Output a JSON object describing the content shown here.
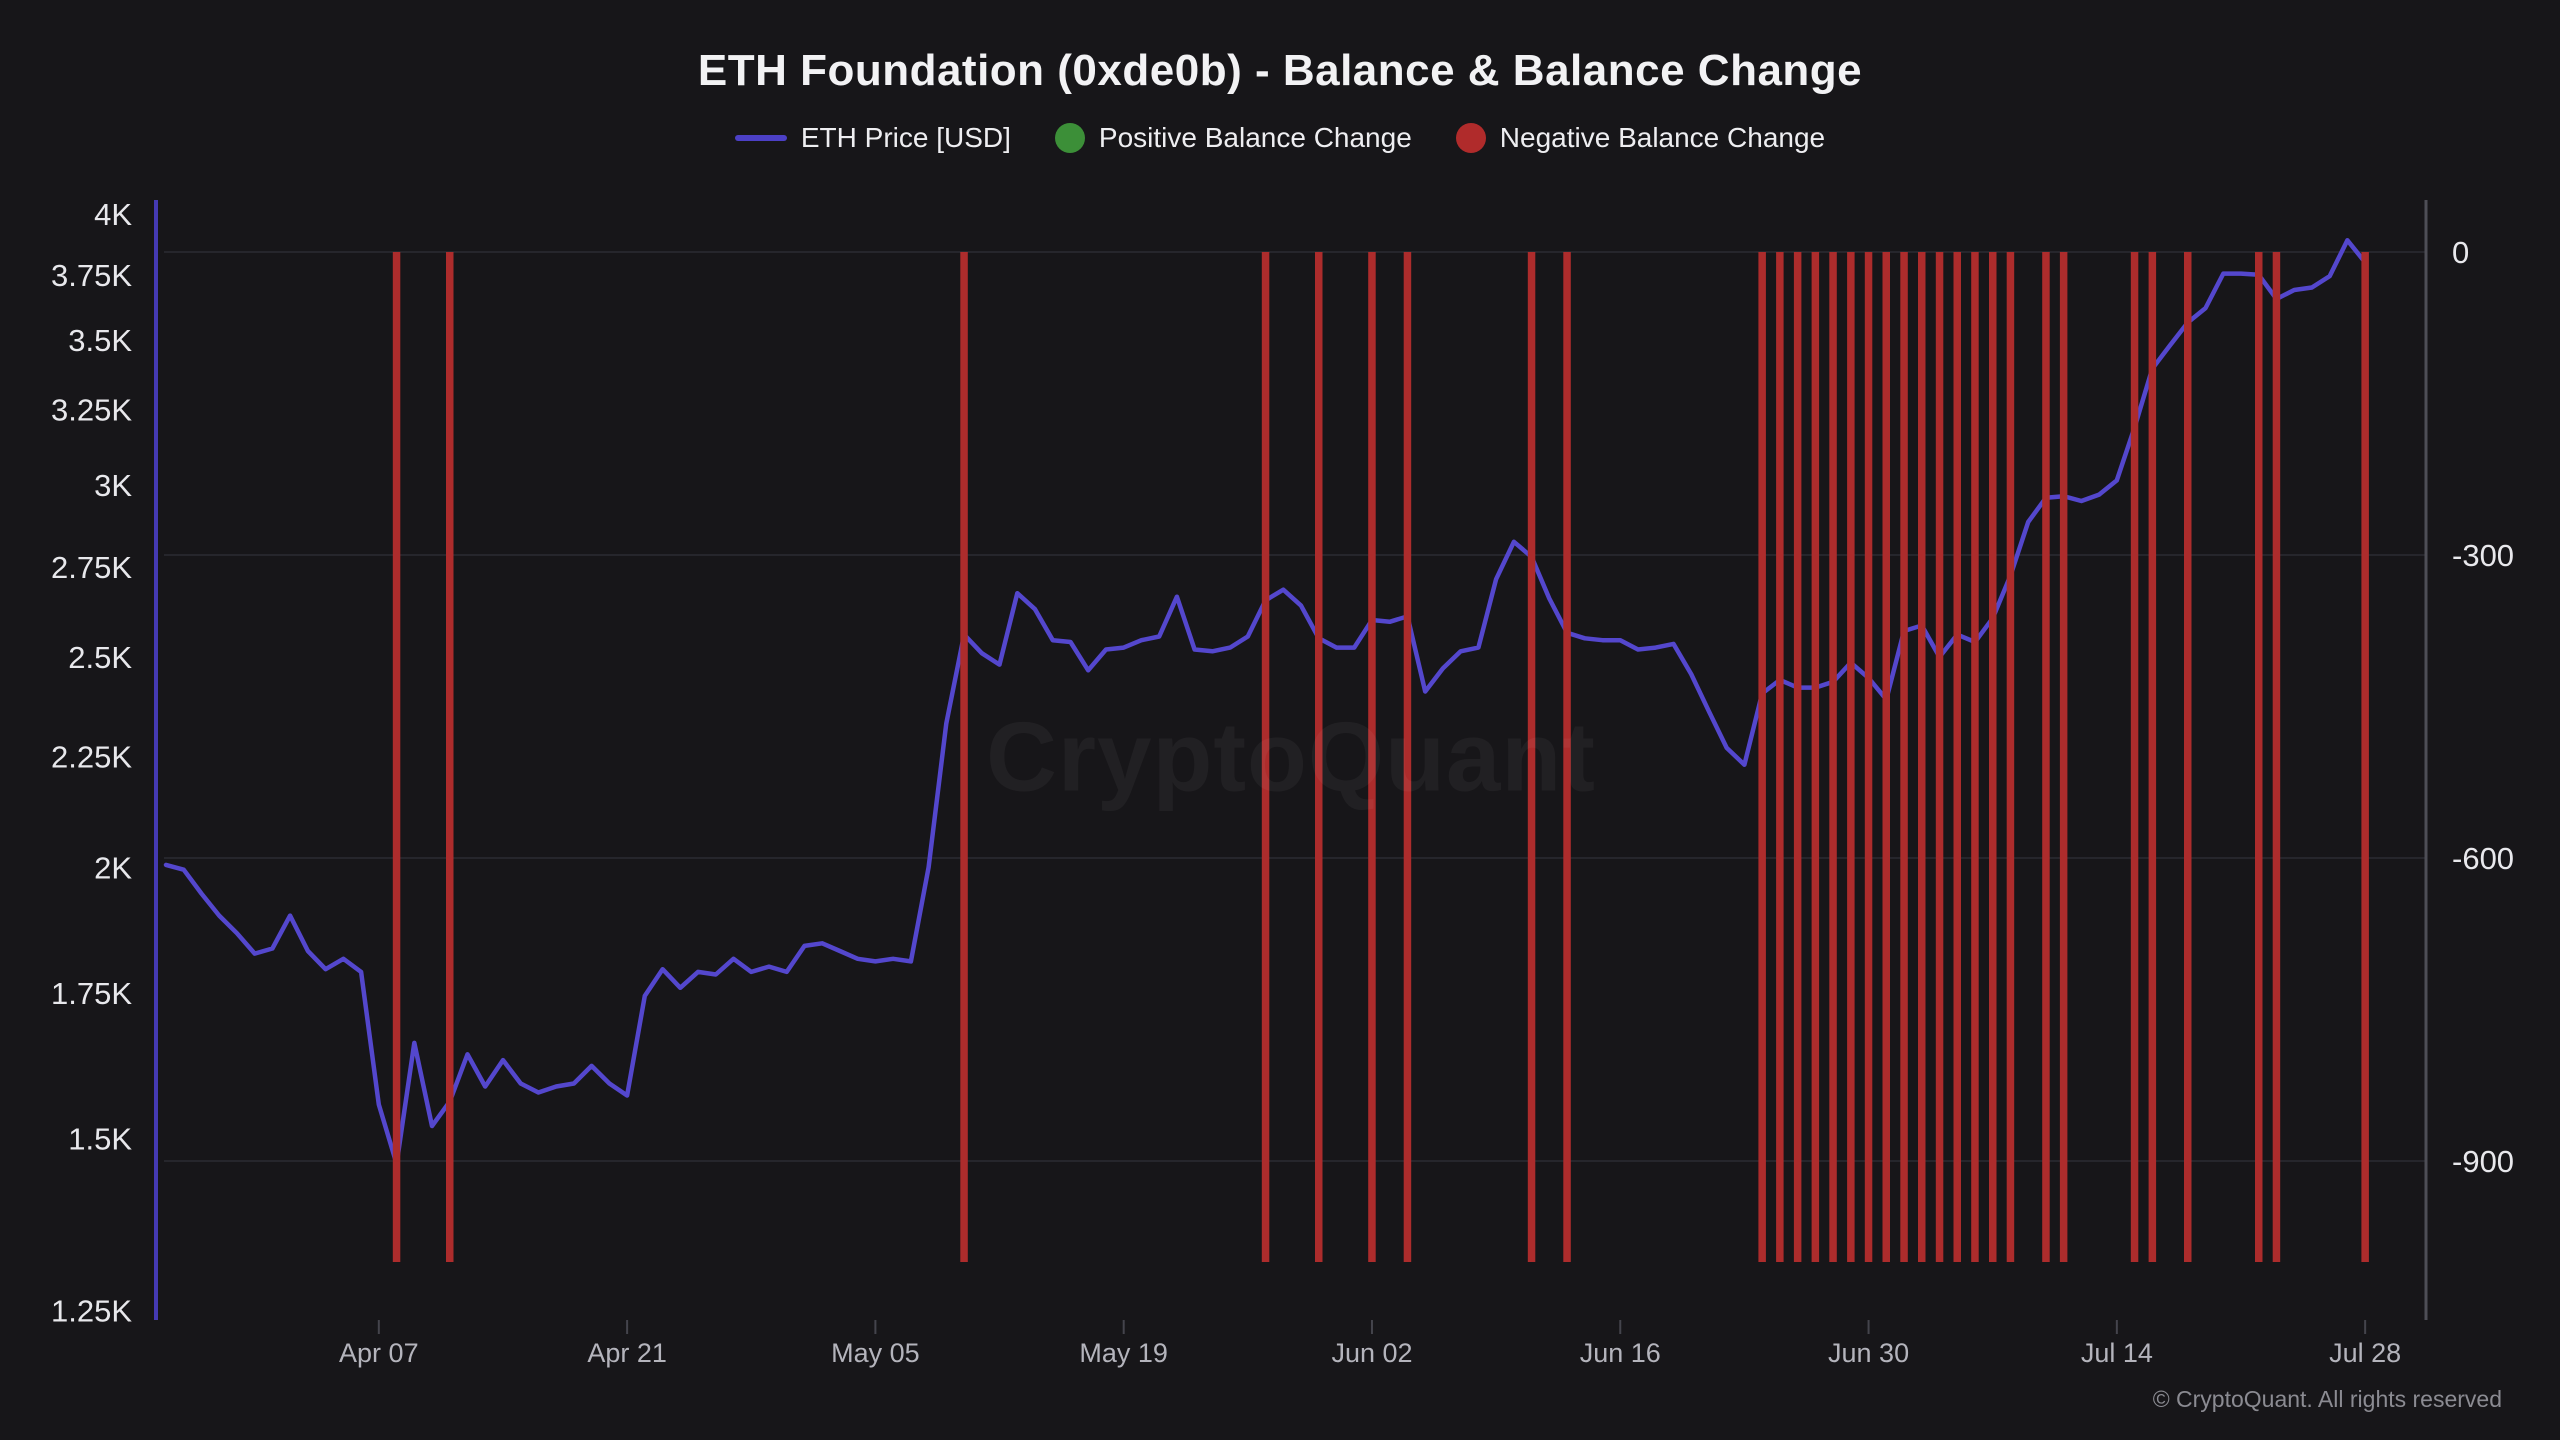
{
  "header": {
    "title": "ETH Foundation (0xde0b) - Balance & Balance Change"
  },
  "legend": {
    "items": [
      {
        "label": "ETH Price [USD]",
        "marker": "line",
        "color": "#4c40c6"
      },
      {
        "label": "Positive Balance Change",
        "marker": "dot",
        "color": "#3c8f38"
      },
      {
        "label": "Negative Balance Change",
        "marker": "dot",
        "color": "#b02b2b"
      }
    ]
  },
  "watermark": {
    "text": "CryptoQuant"
  },
  "footer": {
    "copyright": "© CryptoQuant. All rights reserved"
  },
  "chart_data": {
    "type": "line+bar",
    "title": "ETH Foundation (0xde0b) - Balance & Balance Change",
    "grid": "horizontal",
    "legend_position": "top-center",
    "x_axis": {
      "tick_labels": [
        "Apr 07",
        "Apr 21",
        "May 05",
        "May 19",
        "Jun 02",
        "Jun 16",
        "Jun 30",
        "Jul 14",
        "Jul 28"
      ],
      "dates": [
        "Mar 26",
        "Mar 27",
        "Mar 28",
        "Mar 29",
        "Mar 30",
        "Mar 31",
        "Apr 01",
        "Apr 02",
        "Apr 03",
        "Apr 04",
        "Apr 05",
        "Apr 06",
        "Apr 07",
        "Apr 08",
        "Apr 09",
        "Apr 10",
        "Apr 11",
        "Apr 12",
        "Apr 13",
        "Apr 14",
        "Apr 15",
        "Apr 16",
        "Apr 17",
        "Apr 18",
        "Apr 19",
        "Apr 20",
        "Apr 21",
        "Apr 22",
        "Apr 23",
        "Apr 24",
        "Apr 25",
        "Apr 26",
        "Apr 27",
        "Apr 28",
        "Apr 29",
        "Apr 30",
        "May 01",
        "May 02",
        "May 03",
        "May 04",
        "May 05",
        "May 06",
        "May 07",
        "May 08",
        "May 09",
        "May 10",
        "May 11",
        "May 12",
        "May 13",
        "May 14",
        "May 15",
        "May 16",
        "May 17",
        "May 18",
        "May 19",
        "May 20",
        "May 21",
        "May 22",
        "May 23",
        "May 24",
        "May 25",
        "May 26",
        "May 27",
        "May 28",
        "May 29",
        "May 30",
        "May 31",
        "Jun 01",
        "Jun 02",
        "Jun 03",
        "Jun 04",
        "Jun 05",
        "Jun 06",
        "Jun 07",
        "Jun 08",
        "Jun 09",
        "Jun 10",
        "Jun 11",
        "Jun 12",
        "Jun 13",
        "Jun 14",
        "Jun 15",
        "Jun 16",
        "Jun 17",
        "Jun 18",
        "Jun 19",
        "Jun 20",
        "Jun 21",
        "Jun 22",
        "Jun 23",
        "Jun 24",
        "Jun 25",
        "Jun 26",
        "Jun 27",
        "Jun 28",
        "Jun 29",
        "Jun 30",
        "Jul 01",
        "Jul 02",
        "Jul 03",
        "Jul 04",
        "Jul 05",
        "Jul 06",
        "Jul 07",
        "Jul 08",
        "Jul 09",
        "Jul 10",
        "Jul 11",
        "Jul 12",
        "Jul 13",
        "Jul 14",
        "Jul 15",
        "Jul 16",
        "Jul 17",
        "Jul 18",
        "Jul 19",
        "Jul 20",
        "Jul 21",
        "Jul 22",
        "Jul 23",
        "Jul 24",
        "Jul 25",
        "Jul 26",
        "Jul 27",
        "Jul 28"
      ]
    },
    "left_axis": {
      "scale": "log",
      "unit": "USD",
      "ticks": [
        {
          "label": "4K",
          "value": 4000
        },
        {
          "label": "3.75K",
          "value": 3750
        },
        {
          "label": "3.5K",
          "value": 3500
        },
        {
          "label": "3.25K",
          "value": 3250
        },
        {
          "label": "3K",
          "value": 3000
        },
        {
          "label": "2.75K",
          "value": 2750
        },
        {
          "label": "2.5K",
          "value": 2500
        },
        {
          "label": "2.25K",
          "value": 2250
        },
        {
          "label": "2K",
          "value": 2000
        },
        {
          "label": "1.75K",
          "value": 1750
        },
        {
          "label": "1.5K",
          "value": 1500
        },
        {
          "label": "1.25K",
          "value": 1250
        }
      ]
    },
    "right_axis": {
      "scale": "linear",
      "unit": "ETH",
      "ticks": [
        {
          "label": "0",
          "value": 0
        },
        {
          "label": "-300",
          "value": -300
        },
        {
          "label": "-600",
          "value": -600
        },
        {
          "label": "-900",
          "value": -900
        }
      ]
    },
    "series": [
      {
        "name": "ETH Price [USD]",
        "type": "line",
        "axis": "left",
        "color": "#5447cd",
        "values": [
          2005,
          1995,
          1945,
          1900,
          1865,
          1825,
          1835,
          1900,
          1830,
          1795,
          1815,
          1790,
          1555,
          1460,
          1660,
          1520,
          1560,
          1640,
          1585,
          1630,
          1590,
          1575,
          1585,
          1590,
          1620,
          1590,
          1570,
          1745,
          1795,
          1760,
          1790,
          1785,
          1815,
          1790,
          1800,
          1790,
          1840,
          1845,
          1830,
          1815,
          1810,
          1815,
          1810,
          2000,
          2330,
          2560,
          2510,
          2480,
          2675,
          2630,
          2545,
          2540,
          2465,
          2520,
          2525,
          2545,
          2555,
          2665,
          2520,
          2515,
          2525,
          2555,
          2655,
          2685,
          2640,
          2550,
          2525,
          2525,
          2600,
          2595,
          2610,
          2410,
          2470,
          2515,
          2525,
          2715,
          2825,
          2780,
          2660,
          2565,
          2550,
          2545,
          2545,
          2520,
          2525,
          2535,
          2455,
          2360,
          2270,
          2230,
          2405,
          2440,
          2420,
          2420,
          2435,
          2485,
          2445,
          2390,
          2570,
          2585,
          2500,
          2560,
          2540,
          2605,
          2725,
          2885,
          2960,
          2965,
          2950,
          2970,
          3015,
          3190,
          3395,
          3480,
          3565,
          3620,
          3755,
          3755,
          3750,
          3655,
          3690,
          3700,
          3745,
          3890,
          3800
        ]
      },
      {
        "name": "Negative Balance Change",
        "type": "bar",
        "axis": "right",
        "color": "#ad2c2c",
        "bar_value": -1000,
        "bar_dates": [
          "Apr 08",
          "Apr 11",
          "May 10",
          "May 27",
          "May 30",
          "Jun 02",
          "Jun 04",
          "Jun 11",
          "Jun 13",
          "Jun 24",
          "Jun 25",
          "Jun 26",
          "Jun 27",
          "Jun 28",
          "Jun 29",
          "Jun 30",
          "Jul 01",
          "Jul 02",
          "Jul 03",
          "Jul 04",
          "Jul 05",
          "Jul 06",
          "Jul 07",
          "Jul 08",
          "Jul 10",
          "Jul 11",
          "Jul 15",
          "Jul 16",
          "Jul 18",
          "Jul 22",
          "Jul 23",
          "Jul 28"
        ]
      },
      {
        "name": "Positive Balance Change",
        "type": "bar",
        "axis": "right",
        "color": "#3c8f38",
        "bar_value": null,
        "bar_dates": []
      }
    ]
  }
}
